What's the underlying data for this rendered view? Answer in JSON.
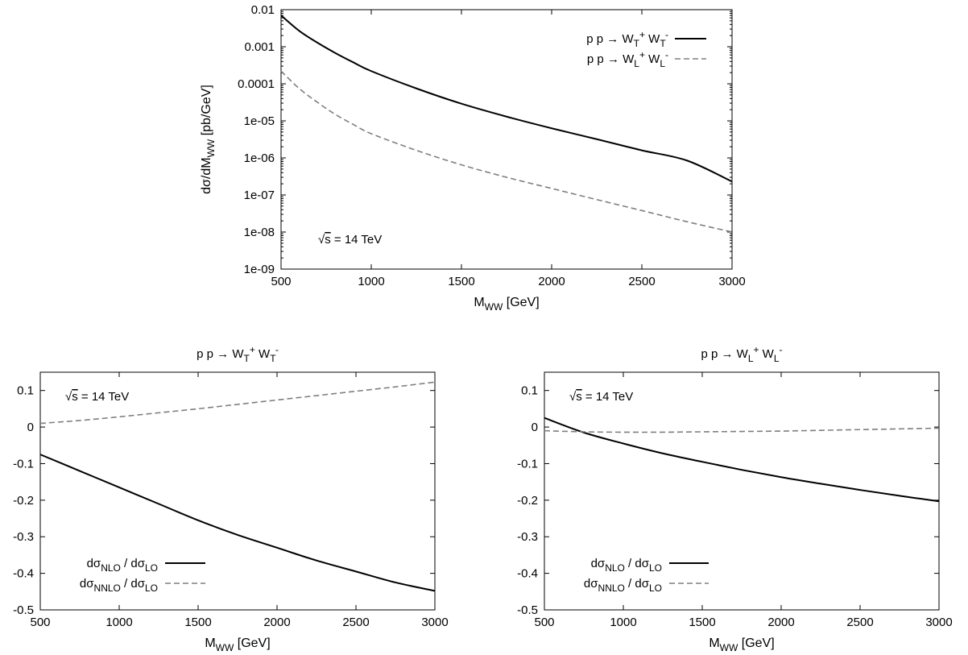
{
  "chart_data": [
    {
      "id": "top",
      "type": "line",
      "title": "",
      "xlabel": {
        "main": "M",
        "sub": "WW",
        "rest": " [GeV]"
      },
      "ylabel": {
        "pre": "dσ/dM",
        "sub": "WW",
        "rest": " [pb/GeV]"
      },
      "yscale": "log",
      "xlim": [
        500,
        3000
      ],
      "ylim": [
        1e-09,
        0.01
      ],
      "xticks": [
        500,
        1000,
        1500,
        2000,
        2500,
        3000
      ],
      "yticks": [
        0.01,
        0.001,
        0.0001,
        1e-05,
        1e-06,
        1e-07,
        1e-08,
        1e-09
      ],
      "ytick_labels": [
        "0.01",
        "0.001",
        "0.0001",
        "1e-05",
        "1e-06",
        "1e-07",
        "1e-08",
        "1e-09"
      ],
      "grid": false,
      "legend_position": "top-right",
      "annotation": {
        "root": "√",
        "over": "s",
        "rest": " = 14 TeV"
      },
      "series": [
        {
          "name": "p p → W_T^+ W_T^-",
          "legend": {
            "pre": "p p  →  W",
            "sub1": "T",
            "sup1": "+",
            "mid": " W",
            "sub2": "T",
            "sup2": "-"
          },
          "style": "solid",
          "color": "#000000",
          "x": [
            500,
            600,
            700,
            800,
            900,
            1000,
            1250,
            1500,
            1750,
            2000,
            2250,
            2500,
            2750,
            3000
          ],
          "y": [
            0.007,
            0.0027,
            0.0013,
            0.00068,
            0.00038,
            0.00022,
            7.5e-05,
            2.9e-05,
            1.3e-05,
            6.3e-06,
            3.2e-06,
            1.6e-06,
            8.5e-07,
            2.3e-07
          ]
        },
        {
          "name": "p p → W_L^+ W_L^-",
          "legend": {
            "pre": "p p  →  W",
            "sub1": "L",
            "sup1": "+",
            "mid": " W",
            "sub2": "L",
            "sup2": "-"
          },
          "style": "dashed",
          "color": "#7f7f7f",
          "x": [
            500,
            600,
            700,
            800,
            900,
            1000,
            1250,
            1500,
            1750,
            2000,
            2250,
            2500,
            2750,
            3000
          ],
          "y": [
            0.00022,
            7.5e-05,
            3.2e-05,
            1.5e-05,
            8e-06,
            4.5e-06,
            1.6e-06,
            6.5e-07,
            3e-07,
            1.5e-07,
            7.5e-08,
            3.8e-08,
            1.9e-08,
            1e-08
          ]
        }
      ]
    },
    {
      "id": "bottom-left",
      "type": "line",
      "title": {
        "pre": "p p  →  W",
        "sub1": "T",
        "sup1": "+",
        "mid": " W",
        "sub2": "T",
        "sup2": "-"
      },
      "xlabel": {
        "main": "M",
        "sub": "WW",
        "rest": " [GeV]"
      },
      "ylabel": "",
      "xlim": [
        500,
        3000
      ],
      "ylim": [
        -0.5,
        0.15
      ],
      "xticks": [
        500,
        1000,
        1500,
        2000,
        2500,
        3000
      ],
      "yticks": [
        0.1,
        0,
        -0.1,
        -0.2,
        -0.3,
        -0.4,
        -0.5
      ],
      "ytick_labels": [
        "0.1",
        "0",
        "-0.1",
        "-0.2",
        "-0.3",
        "-0.4",
        "-0.5"
      ],
      "grid": false,
      "legend_position": "bottom-left",
      "annotation": {
        "root": "√",
        "over": "s",
        "rest": " = 14 TeV"
      },
      "series": [
        {
          "name": "dσ_NLO / dσ_LO",
          "legend": {
            "a": "dσ",
            "asub": "NLO",
            "b": " / dσ",
            "bsub": "LO"
          },
          "style": "solid",
          "color": "#000000",
          "x": [
            500,
            750,
            1000,
            1250,
            1500,
            1750,
            2000,
            2250,
            2500,
            2750,
            3000
          ],
          "y": [
            -0.075,
            -0.12,
            -0.165,
            -0.21,
            -0.255,
            -0.295,
            -0.33,
            -0.365,
            -0.395,
            -0.425,
            -0.448
          ]
        },
        {
          "name": "dσ_NNLO / dσ_LO",
          "legend": {
            "a": "dσ",
            "asub": "NNLO",
            "b": " / dσ",
            "bsub": "LO"
          },
          "style": "dashed",
          "color": "#7f7f7f",
          "x": [
            500,
            750,
            1000,
            1250,
            1500,
            1750,
            2000,
            2250,
            2500,
            2750,
            3000
          ],
          "y": [
            0.01,
            0.018,
            0.028,
            0.039,
            0.05,
            0.062,
            0.074,
            0.086,
            0.098,
            0.11,
            0.123
          ]
        }
      ]
    },
    {
      "id": "bottom-right",
      "type": "line",
      "title": {
        "pre": "p p  →  W",
        "sub1": "L",
        "sup1": "+",
        "mid": " W",
        "sub2": "L",
        "sup2": "-"
      },
      "xlabel": {
        "main": "M",
        "sub": "WW",
        "rest": " [GeV]"
      },
      "ylabel": "",
      "xlim": [
        500,
        3000
      ],
      "ylim": [
        -0.5,
        0.15
      ],
      "xticks": [
        500,
        1000,
        1500,
        2000,
        2500,
        3000
      ],
      "yticks": [
        0.1,
        0,
        -0.1,
        -0.2,
        -0.3,
        -0.4,
        -0.5
      ],
      "ytick_labels": [
        "0.1",
        "0",
        "-0.1",
        "-0.2",
        "-0.3",
        "-0.4",
        "-0.5"
      ],
      "grid": false,
      "legend_position": "bottom-left",
      "annotation": {
        "root": "√",
        "over": "s",
        "rest": " = 14 TeV"
      },
      "series": [
        {
          "name": "dσ_NLO / dσ_LO",
          "legend": {
            "a": "dσ",
            "asub": "NLO",
            "b": " / dσ",
            "bsub": "LO"
          },
          "style": "solid",
          "color": "#000000",
          "x": [
            500,
            750,
            1000,
            1250,
            1500,
            1750,
            2000,
            2250,
            2500,
            2750,
            3000
          ],
          "y": [
            0.025,
            -0.015,
            -0.045,
            -0.072,
            -0.095,
            -0.117,
            -0.137,
            -0.155,
            -0.172,
            -0.188,
            -0.203
          ]
        },
        {
          "name": "dσ_NNLO / dσ_LO",
          "legend": {
            "a": "dσ",
            "asub": "NNLO",
            "b": " / dσ",
            "bsub": "LO"
          },
          "style": "dashed",
          "color": "#7f7f7f",
          "x": [
            500,
            750,
            1000,
            1250,
            1500,
            1750,
            2000,
            2250,
            2500,
            2750,
            3000
          ],
          "y": [
            -0.01,
            -0.013,
            -0.014,
            -0.014,
            -0.013,
            -0.012,
            -0.011,
            -0.009,
            -0.007,
            -0.005,
            -0.003
          ]
        }
      ]
    }
  ]
}
